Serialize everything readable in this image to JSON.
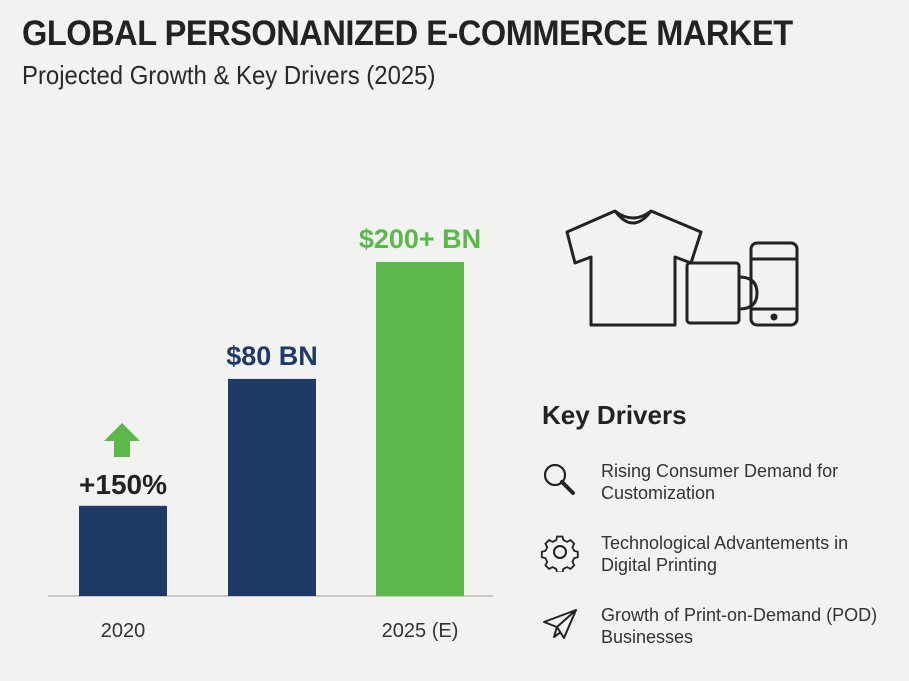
{
  "header": {
    "title": "GLOBAL PERSONANIZED E-COMMERCE MARKET",
    "subtitle": "Projected Growth & Key Drivers (2025)"
  },
  "chart_data": {
    "type": "bar",
    "categories": [
      "2020",
      "",
      "2025 (E)"
    ],
    "bar_labels": [
      "+150%",
      "$80 BN",
      "$200+ BN"
    ],
    "values": [
      null,
      80,
      200
    ],
    "relative_height": [
      0.27,
      0.65,
      1.0
    ],
    "colors": [
      "#1e3a66",
      "#1e3a66",
      "#5bb84a"
    ],
    "label_colors": [
      "#222222",
      "#1e3a66",
      "#5bb84a"
    ],
    "growth_arrow_color": "#5bb84a",
    "unit": "USD billions"
  },
  "illustration": {
    "icons": [
      "tshirt-icon",
      "mug-icon",
      "smartphone-icon"
    ]
  },
  "key_drivers": {
    "title": "Key Drivers",
    "items": [
      {
        "icon": "search-icon",
        "line1": "Rising Consumer Demand for",
        "line2": "Customization"
      },
      {
        "icon": "gear-icon",
        "line1": "Technological Advantements in",
        "line2": "Digital Printing"
      },
      {
        "icon": "paper-plane-icon",
        "line1": "Growth of Print-on-Demand (POD)",
        "line2": "Businesses"
      }
    ]
  }
}
